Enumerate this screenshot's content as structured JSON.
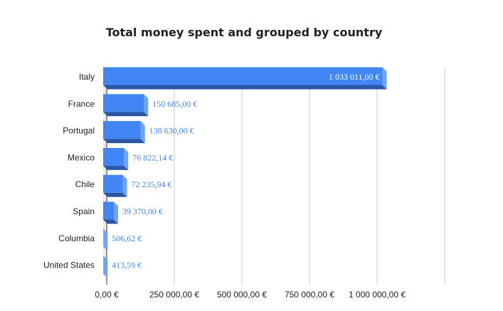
{
  "chart_data": {
    "type": "bar",
    "orientation": "horizontal",
    "style": "3d",
    "title": "Total money spent and grouped by country",
    "xlabel": "",
    "ylabel": "",
    "categories": [
      "Italy",
      "France",
      "Portugal",
      "Mexico",
      "Chile",
      "Spain",
      "Columbia",
      "United States"
    ],
    "values": [
      1033011.0,
      150685.0,
      138630.0,
      76822.14,
      72235.94,
      39370.0,
      506.62,
      413.59
    ],
    "data_labels": [
      "1 033 011,00 €",
      "150 685,00 €",
      "138 630,00 €",
      "76 822,14 €",
      "72 235,94 €",
      "39 370,00 €",
      "506,62 €",
      "413,59 €"
    ],
    "xlim": [
      0,
      1250000
    ],
    "x_ticks": [
      0,
      250000,
      500000,
      750000,
      1000000,
      1250000
    ],
    "x_tick_labels": [
      "0,00 €",
      "250 000,00 €",
      "500 000,00 €",
      "750 000,00 €",
      "1 000 000,00 €",
      ""
    ],
    "grid": true,
    "legend": "none",
    "colors": {
      "bar": "#4285f4",
      "bar_bottom": "#2a56a3",
      "bar_side": "#6fa3f7",
      "label": "#4285f4",
      "label_inside": "#ffffff",
      "grid": "#cccccc",
      "wall": "#ebebeb"
    }
  }
}
